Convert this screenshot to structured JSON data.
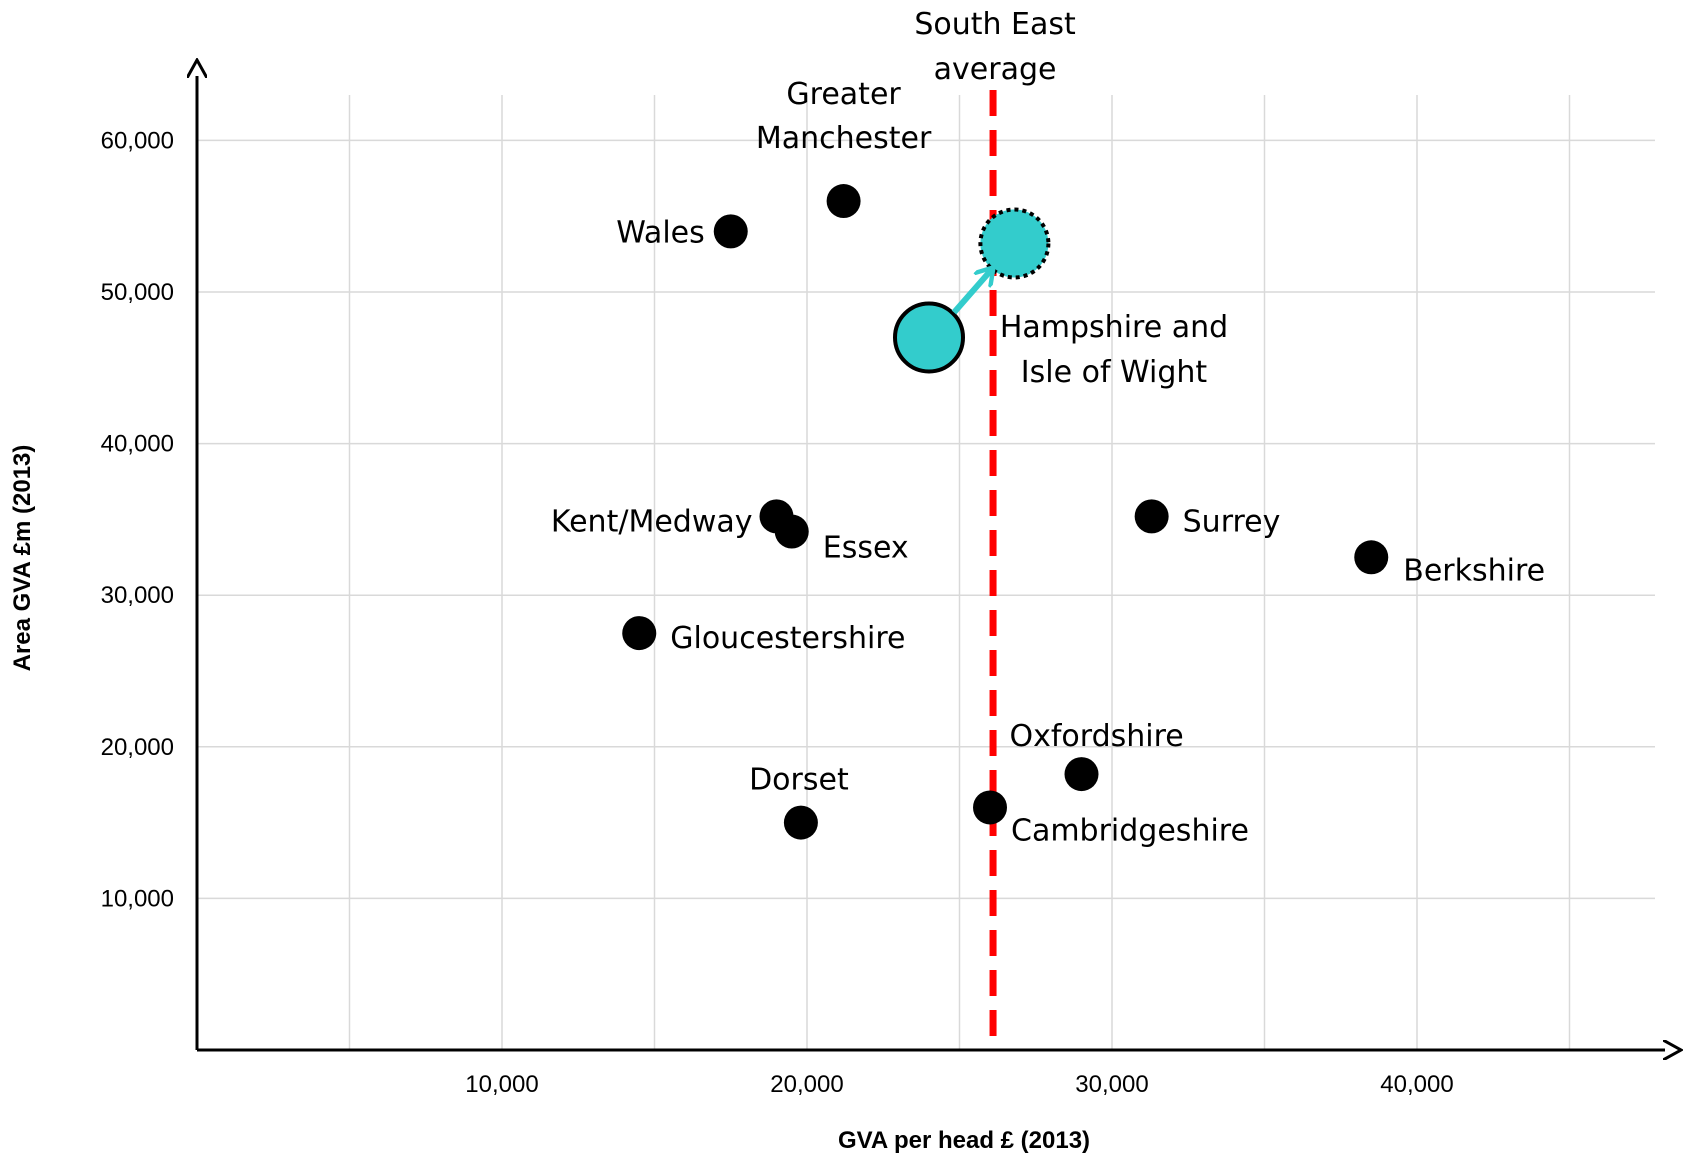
{
  "chart_data": {
    "type": "scatter",
    "xlabel": "GVA per head £ (2013)",
    "ylabel": "Area GVA £m (2013)",
    "xlim": [
      0,
      48500
    ],
    "ylim": [
      0,
      62000
    ],
    "x_ticks": [
      10000,
      20000,
      30000,
      40000
    ],
    "x_tick_labels": [
      "10,000",
      "20,000",
      "30,000",
      "40,000"
    ],
    "y_ticks": [
      10000,
      20000,
      30000,
      40000,
      50000,
      60000
    ],
    "y_tick_labels": [
      "10,000",
      "20,000",
      "30,000",
      "40,000",
      "50,000",
      "60,000"
    ],
    "x_gridlines": [
      5000,
      10000,
      15000,
      20000,
      25000,
      30000,
      35000,
      40000,
      45000
    ],
    "grid": true,
    "points": [
      {
        "label": "Wales",
        "x": 17500,
        "y": 54000
      },
      {
        "label": "Greater Manchester",
        "x": 21200,
        "y": 56000
      },
      {
        "label": "Kent/Medway",
        "x": 19000,
        "y": 35200
      },
      {
        "label": "Essex",
        "x": 19500,
        "y": 34200
      },
      {
        "label": "Surrey",
        "x": 31300,
        "y": 35200
      },
      {
        "label": "Berkshire",
        "x": 38500,
        "y": 32500
      },
      {
        "label": "Gloucestershire",
        "x": 14500,
        "y": 27500
      },
      {
        "label": "Oxfordshire",
        "x": 29000,
        "y": 18200
      },
      {
        "label": "Dorset",
        "x": 19800,
        "y": 15000
      },
      {
        "label": "Cambridgeshire",
        "x": 26000,
        "y": 16000
      }
    ],
    "highlight": {
      "label": "Hampshire and Isle of Wight",
      "current": {
        "x": 24000,
        "y": 47000
      },
      "target": {
        "x": 26800,
        "y": 53200
      },
      "color": "#33cccc"
    },
    "reference_line": {
      "label": "South East average",
      "x": 26100,
      "color": "#ff0000",
      "style": "dashed"
    },
    "point_color": "#000000"
  }
}
